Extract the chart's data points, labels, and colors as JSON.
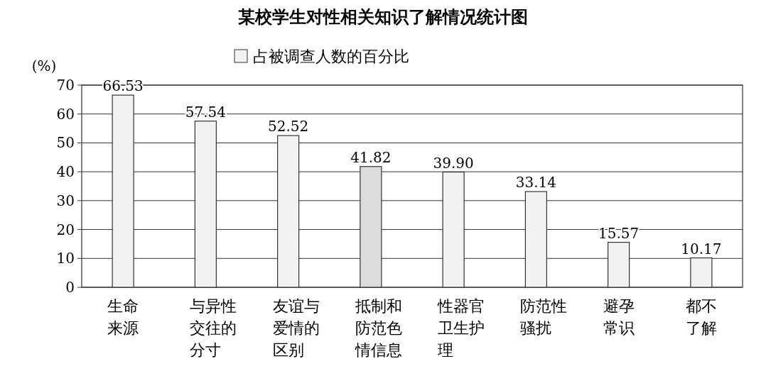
{
  "chart_data": {
    "type": "bar",
    "title": "某校学生对性相关知识了解情况统计图",
    "ylabel": "(%)",
    "categories": [
      "生命来源",
      "与异性交往的分寸",
      "友谊与爱情的区别",
      "抵制和防范色情信息",
      "性器官卫生护理",
      "防范性骚扰",
      "避孕常识",
      "都不了解"
    ],
    "series": [
      {
        "name": "占被调查人数的百分比",
        "color": "#f2f2f2",
        "colors": [
          "#f2f2f2",
          "#f2f2f2",
          "#f2f2f2",
          "#dcdcdc",
          "#f2f2f2",
          "#f2f2f2",
          "#f2f2f2",
          "#f2f2f2"
        ],
        "values": [
          66.53,
          57.54,
          52.52,
          41.82,
          39.9,
          33.14,
          15.57,
          10.17
        ]
      }
    ],
    "value_labels": [
      "66.53",
      "57.54",
      "52.52",
      "41.82",
      "39.90",
      "33.14",
      "15.57",
      "10.17"
    ],
    "ylim": [
      0,
      70
    ],
    "yticks": [
      0,
      10,
      20,
      30,
      40,
      50,
      60,
      70
    ],
    "grid": "y",
    "legend": "top"
  }
}
